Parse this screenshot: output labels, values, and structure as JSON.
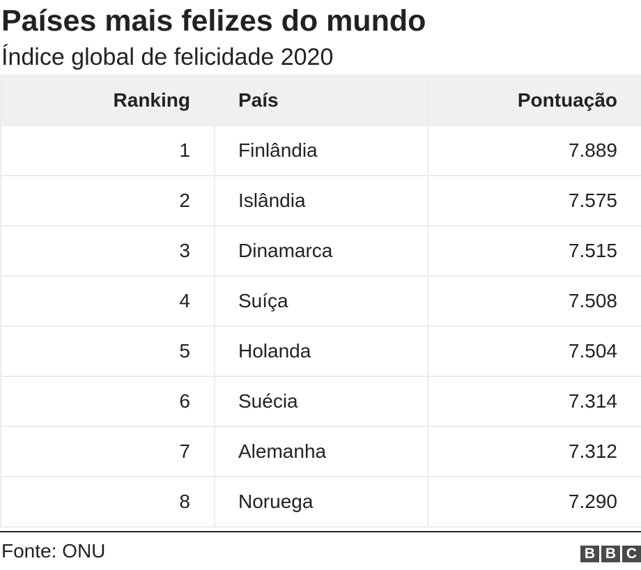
{
  "title": "Países mais felizes do mundo",
  "subtitle": "Índice global de felicidade 2020",
  "columns": {
    "rank": "Ranking",
    "country": "País",
    "score": "Pontuação"
  },
  "rows": [
    {
      "rank": "1",
      "country": "Finlândia",
      "score": "7.889"
    },
    {
      "rank": "2",
      "country": "Islândia",
      "score": "7.575"
    },
    {
      "rank": "3",
      "country": "Dinamarca",
      "score": "7.515"
    },
    {
      "rank": "4",
      "country": "Suíça",
      "score": "7.508"
    },
    {
      "rank": "5",
      "country": "Holanda",
      "score": "7.504"
    },
    {
      "rank": "6",
      "country": "Suécia",
      "score": "7.314"
    },
    {
      "rank": "7",
      "country": "Alemanha",
      "score": "7.312"
    },
    {
      "rank": "8",
      "country": "Noruega",
      "score": "7.290"
    }
  ],
  "source": "Fonte: ONU",
  "logo": {
    "letters": [
      "B",
      "B",
      "C"
    ],
    "color": "#4a4a4a"
  },
  "colors": {
    "header_background": "#f0f0f0",
    "grid_lines": "#ececec",
    "text": "#222222"
  },
  "chart_data": {
    "type": "table",
    "title": "Países mais felizes do mundo",
    "subtitle": "Índice global de felicidade 2020",
    "columns": [
      "Ranking",
      "País",
      "Pontuação"
    ],
    "rows": [
      [
        1,
        "Finlândia",
        7.889
      ],
      [
        2,
        "Islândia",
        7.575
      ],
      [
        3,
        "Dinamarca",
        7.515
      ],
      [
        4,
        "Suíça",
        7.508
      ],
      [
        5,
        "Holanda",
        7.504
      ],
      [
        6,
        "Suécia",
        7.314
      ],
      [
        7,
        "Alemanha",
        7.312
      ],
      [
        8,
        "Noruega",
        7.29
      ]
    ],
    "source": "Fonte: ONU"
  }
}
